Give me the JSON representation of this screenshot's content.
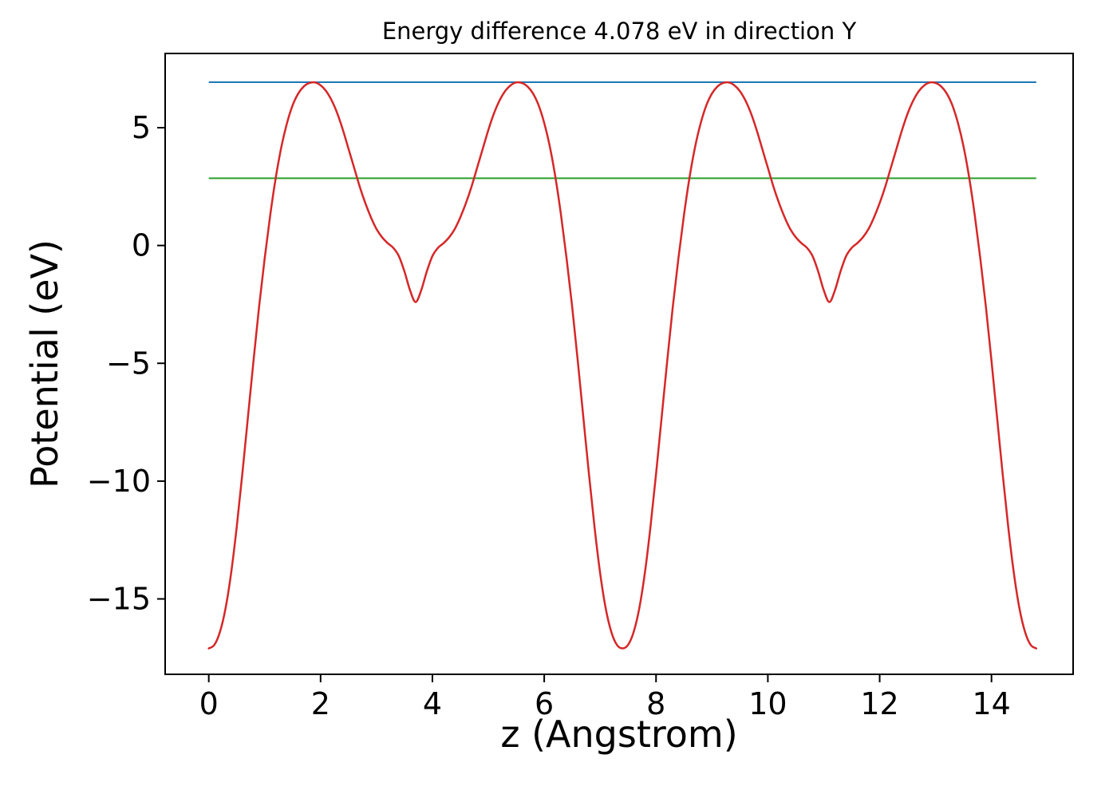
{
  "chart_data": {
    "type": "line",
    "title": "Energy difference 4.078 eV in direction Y",
    "xlabel": "z (Angstrom)",
    "ylabel": "Potential (eV)",
    "xlim": [
      -0.78,
      15.46
    ],
    "ylim": [
      -18.2,
      8.15
    ],
    "xticks": [
      0,
      2,
      4,
      6,
      8,
      10,
      12,
      14
    ],
    "xtick_labels": [
      "0",
      "2",
      "4",
      "6",
      "8",
      "10",
      "12",
      "14"
    ],
    "yticks": [
      5,
      0,
      -5,
      -10,
      -15
    ],
    "ytick_labels": [
      "5",
      "0",
      "−5",
      "−10",
      "−15"
    ],
    "grid": false,
    "legend": "none",
    "background": "#ffffff",
    "axis_color": "#000000",
    "energy_difference_eV": 4.078,
    "direction": "Y",
    "series": [
      {
        "name": "potential-curve",
        "type": "line",
        "color": "#d62728",
        "x_start": 0.0,
        "x_step": 0.1,
        "y": [
          -17.1,
          -16.95,
          -16.4,
          -15.4,
          -13.9,
          -11.95,
          -9.7,
          -7.3,
          -4.9,
          -2.6,
          -0.55,
          1.3,
          2.9,
          4.2,
          5.2,
          5.95,
          6.45,
          6.75,
          6.9,
          6.92,
          6.8,
          6.55,
          6.15,
          5.6,
          4.9,
          4.1,
          3.3,
          2.5,
          1.8,
          1.2,
          0.7,
          0.35,
          0.1,
          -0.1,
          -0.45,
          -1.1,
          -1.9,
          -2.4,
          -1.9,
          -1.1,
          -0.45,
          -0.1,
          0.1,
          0.35,
          0.7,
          1.2,
          1.8,
          2.5,
          3.3,
          4.1,
          4.9,
          5.6,
          6.15,
          6.55,
          6.8,
          6.92,
          6.9,
          6.75,
          6.45,
          5.95,
          5.2,
          4.2,
          2.9,
          1.3,
          -0.55,
          -2.6,
          -4.9,
          -7.3,
          -9.7,
          -11.95,
          -13.9,
          -15.4,
          -16.4,
          -16.95,
          -17.1,
          -16.95,
          -16.4,
          -15.4,
          -13.9,
          -11.95,
          -9.7,
          -7.3,
          -4.9,
          -2.6,
          -0.55,
          1.3,
          2.9,
          4.2,
          5.2,
          5.95,
          6.45,
          6.75,
          6.9,
          6.92,
          6.8,
          6.55,
          6.15,
          5.6,
          4.9,
          4.1,
          3.3,
          2.5,
          1.8,
          1.2,
          0.7,
          0.35,
          0.1,
          -0.1,
          -0.45,
          -1.1,
          -1.9,
          -2.4,
          -1.9,
          -1.1,
          -0.45,
          -0.1,
          0.1,
          0.35,
          0.7,
          1.2,
          1.8,
          2.5,
          3.3,
          4.1,
          4.9,
          5.6,
          6.15,
          6.55,
          6.8,
          6.92,
          6.9,
          6.75,
          6.45,
          5.95,
          5.2,
          4.2,
          2.9,
          1.3,
          -0.55,
          -2.6,
          -4.9,
          -7.3,
          -9.7,
          -11.95,
          -13.9,
          -15.4,
          -16.4,
          -16.95,
          -17.1
        ]
      },
      {
        "name": "hline-blue",
        "type": "hline",
        "color": "#1f77b4",
        "y": 6.93,
        "x_range": [
          0.0,
          14.8
        ]
      },
      {
        "name": "hline-green",
        "type": "hline",
        "color": "#2ca02c",
        "y": 2.852,
        "x_range": [
          0.0,
          14.8
        ]
      }
    ]
  }
}
